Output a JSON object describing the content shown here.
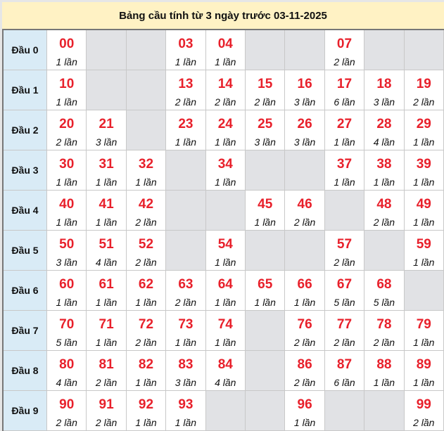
{
  "title": "Bảng cầu tính từ 3 ngày trước 03-11-2025",
  "colors": {
    "number": "#e8202b",
    "header_bg": "#d9ebf6",
    "title_bg": "#fff2c4",
    "empty_bg": "#e1e2e5"
  },
  "rows": [
    {
      "label": "Đầu 0",
      "cells": [
        {
          "num": "00",
          "count": "1 lần"
        },
        null,
        null,
        {
          "num": "03",
          "count": "1 lần"
        },
        {
          "num": "04",
          "count": "1 lần"
        },
        null,
        null,
        {
          "num": "07",
          "count": "2 lần"
        },
        null,
        null
      ]
    },
    {
      "label": "Đầu 1",
      "cells": [
        {
          "num": "10",
          "count": "1 lần"
        },
        null,
        null,
        {
          "num": "13",
          "count": "2 lần"
        },
        {
          "num": "14",
          "count": "2 lần"
        },
        {
          "num": "15",
          "count": "2 lần"
        },
        {
          "num": "16",
          "count": "3 lần"
        },
        {
          "num": "17",
          "count": "6 lần"
        },
        {
          "num": "18",
          "count": "3 lần"
        },
        {
          "num": "19",
          "count": "2 lần"
        }
      ]
    },
    {
      "label": "Đầu 2",
      "cells": [
        {
          "num": "20",
          "count": "2 lần"
        },
        {
          "num": "21",
          "count": "3 lần"
        },
        null,
        {
          "num": "23",
          "count": "1 lần"
        },
        {
          "num": "24",
          "count": "1 lần"
        },
        {
          "num": "25",
          "count": "3 lần"
        },
        {
          "num": "26",
          "count": "3 lần"
        },
        {
          "num": "27",
          "count": "1 lần"
        },
        {
          "num": "28",
          "count": "4 lần"
        },
        {
          "num": "29",
          "count": "1 lần"
        }
      ]
    },
    {
      "label": "Đầu 3",
      "cells": [
        {
          "num": "30",
          "count": "1 lần"
        },
        {
          "num": "31",
          "count": "1 lần"
        },
        {
          "num": "32",
          "count": "1 lần"
        },
        null,
        {
          "num": "34",
          "count": "1 lần"
        },
        null,
        null,
        {
          "num": "37",
          "count": "1 lần"
        },
        {
          "num": "38",
          "count": "1 lần"
        },
        {
          "num": "39",
          "count": "1 lần"
        }
      ]
    },
    {
      "label": "Đầu 4",
      "cells": [
        {
          "num": "40",
          "count": "1 lần"
        },
        {
          "num": "41",
          "count": "1 lần"
        },
        {
          "num": "42",
          "count": "2 lần"
        },
        null,
        null,
        {
          "num": "45",
          "count": "1 lần"
        },
        {
          "num": "46",
          "count": "2 lần"
        },
        null,
        {
          "num": "48",
          "count": "2 lần"
        },
        {
          "num": "49",
          "count": "1 lần"
        }
      ]
    },
    {
      "label": "Đầu 5",
      "cells": [
        {
          "num": "50",
          "count": "3 lần"
        },
        {
          "num": "51",
          "count": "4 lần"
        },
        {
          "num": "52",
          "count": "2 lần"
        },
        null,
        {
          "num": "54",
          "count": "1 lần"
        },
        null,
        null,
        {
          "num": "57",
          "count": "2 lần"
        },
        null,
        {
          "num": "59",
          "count": "1 lần"
        }
      ]
    },
    {
      "label": "Đầu 6",
      "cells": [
        {
          "num": "60",
          "count": "1 lần"
        },
        {
          "num": "61",
          "count": "1 lần"
        },
        {
          "num": "62",
          "count": "1 lần"
        },
        {
          "num": "63",
          "count": "2 lần"
        },
        {
          "num": "64",
          "count": "1 lần"
        },
        {
          "num": "65",
          "count": "1 lần"
        },
        {
          "num": "66",
          "count": "1 lần"
        },
        {
          "num": "67",
          "count": "5 lần"
        },
        {
          "num": "68",
          "count": "5 lần"
        },
        null
      ]
    },
    {
      "label": "Đầu 7",
      "cells": [
        {
          "num": "70",
          "count": "5 lần"
        },
        {
          "num": "71",
          "count": "1 lần"
        },
        {
          "num": "72",
          "count": "2 lần"
        },
        {
          "num": "73",
          "count": "1 lần"
        },
        {
          "num": "74",
          "count": "1 lần"
        },
        null,
        {
          "num": "76",
          "count": "2 lần"
        },
        {
          "num": "77",
          "count": "2 lần"
        },
        {
          "num": "78",
          "count": "2 lần"
        },
        {
          "num": "79",
          "count": "1 lần"
        }
      ]
    },
    {
      "label": "Đầu 8",
      "cells": [
        {
          "num": "80",
          "count": "4 lần"
        },
        {
          "num": "81",
          "count": "2 lần"
        },
        {
          "num": "82",
          "count": "1 lần"
        },
        {
          "num": "83",
          "count": "3 lần"
        },
        {
          "num": "84",
          "count": "4 lần"
        },
        null,
        {
          "num": "86",
          "count": "2 lần"
        },
        {
          "num": "87",
          "count": "6 lần"
        },
        {
          "num": "88",
          "count": "1 lần"
        },
        {
          "num": "89",
          "count": "1 lần"
        }
      ]
    },
    {
      "label": "Đầu 9",
      "cells": [
        {
          "num": "90",
          "count": "2 lần"
        },
        {
          "num": "91",
          "count": "2 lần"
        },
        {
          "num": "92",
          "count": "1 lần"
        },
        {
          "num": "93",
          "count": "1 lần"
        },
        null,
        null,
        {
          "num": "96",
          "count": "1 lần"
        },
        null,
        null,
        {
          "num": "99",
          "count": "2 lần"
        }
      ]
    }
  ]
}
